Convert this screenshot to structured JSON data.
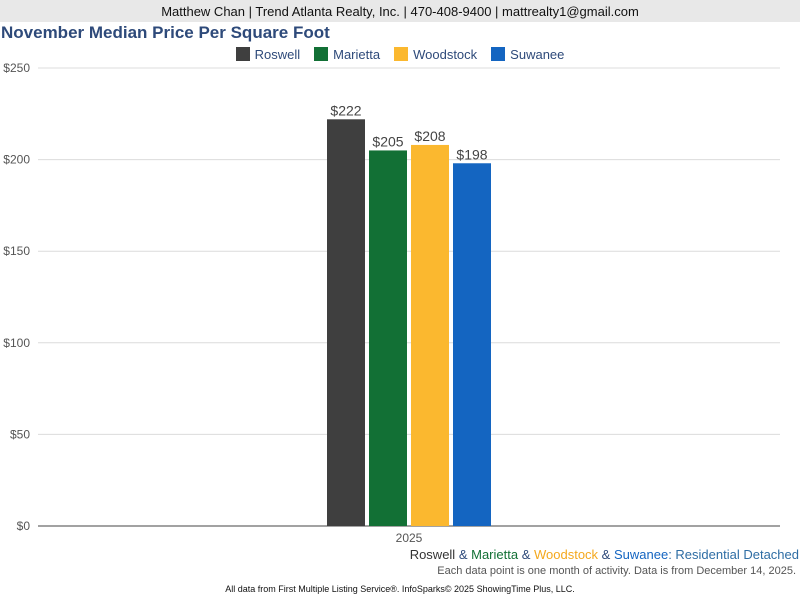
{
  "header": {
    "contact": "Matthew Chan | Trend Atlanta Realty, Inc. | 470-408-9400 | mattrealty1@gmail.com"
  },
  "chart_data": {
    "type": "bar",
    "title": "November Median Price Per Square Foot",
    "categories": [
      "2025"
    ],
    "series": [
      {
        "name": "Roswell",
        "values": [
          222
        ],
        "label": "$222",
        "color": "#3f3f3f"
      },
      {
        "name": "Marietta",
        "values": [
          205
        ],
        "label": "$205",
        "color": "#127035"
      },
      {
        "name": "Woodstock",
        "values": [
          208
        ],
        "label": "$208",
        "color": "#fbb82f"
      },
      {
        "name": "Suwanee",
        "values": [
          198
        ],
        "label": "$198",
        "color": "#1465c1"
      }
    ],
    "yticks": [
      "$0",
      "$50",
      "$100",
      "$150",
      "$200",
      "$250"
    ],
    "ylim": [
      0,
      250
    ],
    "xlabel": "",
    "ylabel": "",
    "grid": true,
    "legend_position": "top-center"
  },
  "footer": {
    "series_names": [
      "Roswell",
      "Marietta",
      "Woodstock",
      "Suwanee"
    ],
    "separator": " & ",
    "suffix": ": Residential Detached",
    "note": "Each data point is one month of activity. Data is from December 14, 2025.",
    "source": "All data from First Multiple Listing Service®. InfoSparks© 2025 ShowingTime Plus, LLC."
  }
}
